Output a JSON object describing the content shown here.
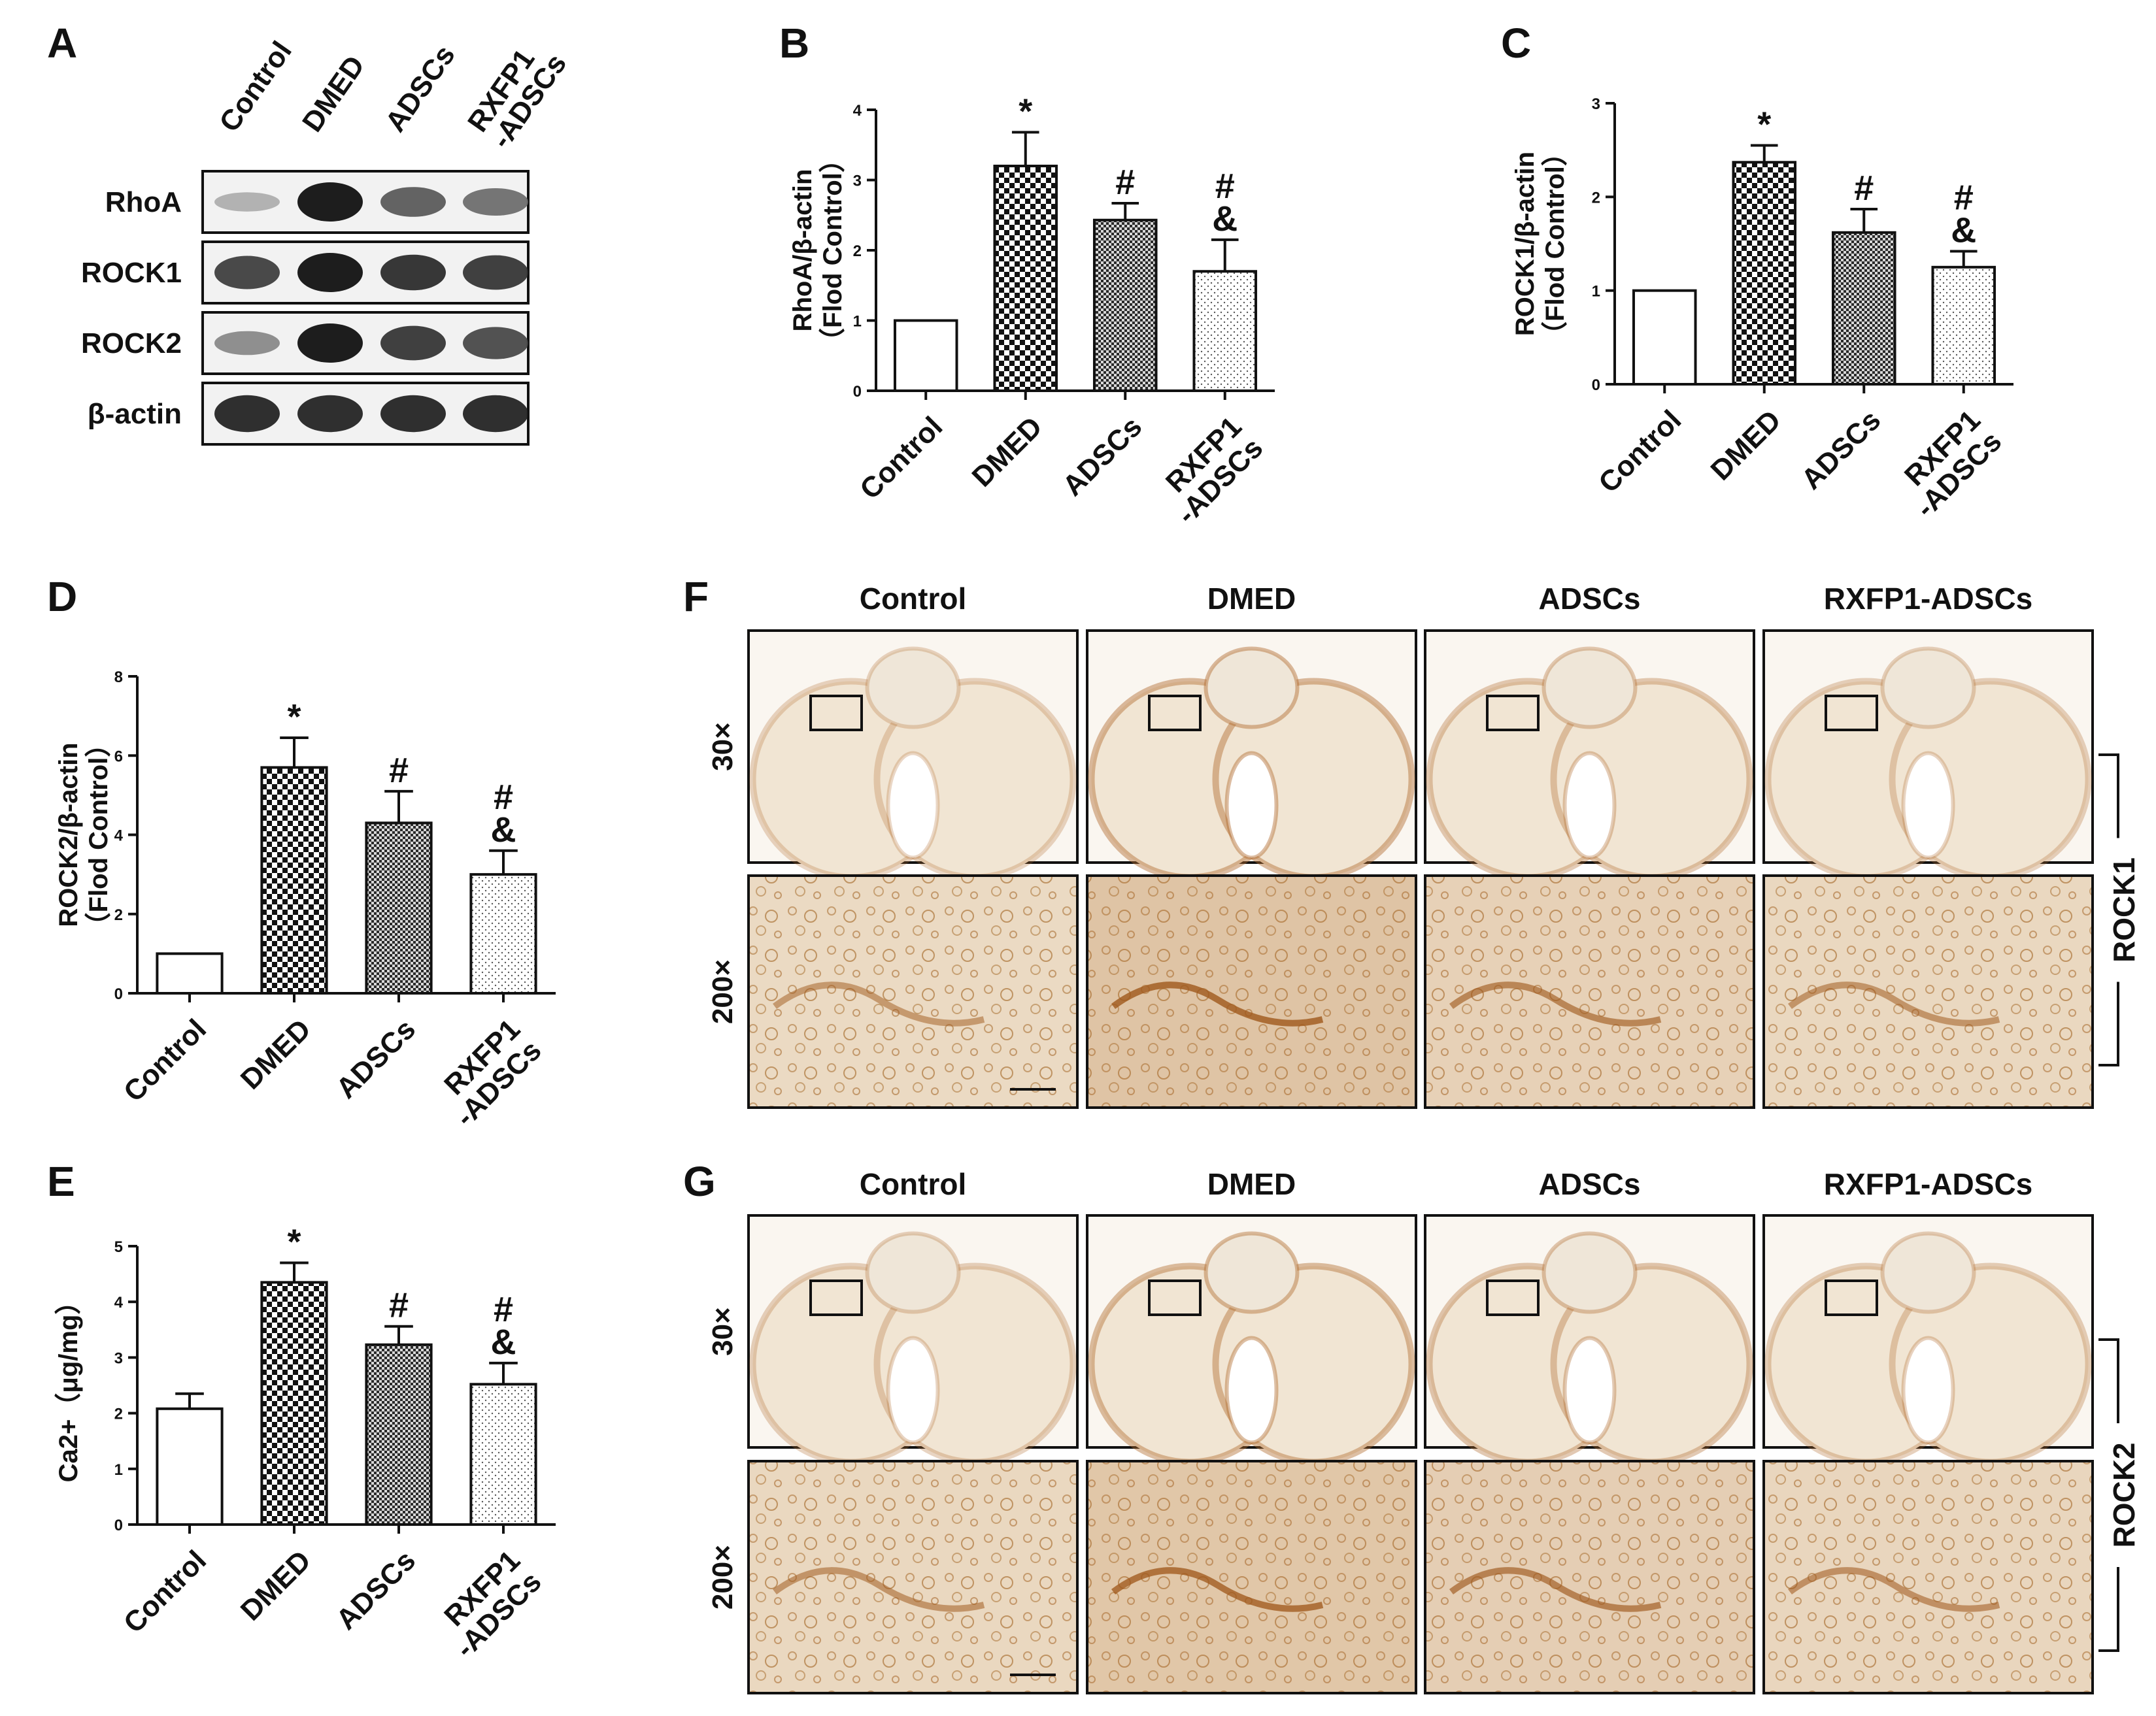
{
  "blot": {
    "panel_label": "A",
    "lanes": [
      "Control",
      "DMED",
      "ADSCs",
      "RXFP1\n-ADSCs"
    ],
    "proteins": [
      "RhoA",
      "ROCK1",
      "ROCK2",
      "β-actin"
    ],
    "band_intensity": [
      [
        0.15,
        1.0,
        0.6,
        0.5
      ],
      [
        0.75,
        1.0,
        0.85,
        0.8
      ],
      [
        0.35,
        1.0,
        0.8,
        0.7
      ],
      [
        0.9,
        0.9,
        0.9,
        0.9
      ]
    ]
  },
  "chart_data": [
    {
      "panel": "B",
      "type": "bar",
      "categories": [
        "Control",
        "DMED",
        "ADSCs",
        "RXFP1\n-ADSCs"
      ],
      "values": [
        1.0,
        3.2,
        2.43,
        1.7
      ],
      "errors": [
        0,
        0.48,
        0.24,
        0.45
      ],
      "significance": [
        "",
        "*",
        "#",
        "#\n&"
      ],
      "ylabel": "RhoA/β-actin\n（Flod Control）",
      "ylim": [
        0,
        4
      ],
      "yticks": [
        0,
        1,
        2,
        3,
        4
      ]
    },
    {
      "panel": "C",
      "type": "bar",
      "categories": [
        "Control",
        "DMED",
        "ADSCs",
        "RXFP1\n-ADSCs"
      ],
      "values": [
        1.0,
        2.37,
        1.62,
        1.25
      ],
      "errors": [
        0,
        0.18,
        0.25,
        0.17
      ],
      "significance": [
        "",
        "*",
        "#",
        "#\n&"
      ],
      "ylabel": "ROCK1/β-actin\n（Flod Control）",
      "ylim": [
        0,
        3
      ],
      "yticks": [
        0,
        1,
        2,
        3
      ]
    },
    {
      "panel": "D",
      "type": "bar",
      "categories": [
        "Control",
        "DMED",
        "ADSCs",
        "RXFP1\n-ADSCs"
      ],
      "values": [
        1.0,
        5.7,
        4.3,
        3.0
      ],
      "errors": [
        0,
        0.75,
        0.8,
        0.6
      ],
      "significance": [
        "",
        "*",
        "#",
        "#\n&"
      ],
      "ylabel": "ROCK2/β-actin\n（Flod Control）",
      "ylim": [
        0,
        8
      ],
      "yticks": [
        0,
        2,
        4,
        6,
        8
      ]
    },
    {
      "panel": "E",
      "type": "bar",
      "categories": [
        "Control",
        "DMED",
        "ADSCs",
        "RXFP1\n-ADSCs"
      ],
      "values": [
        2.08,
        4.35,
        3.23,
        2.52
      ],
      "errors": [
        0.27,
        0.35,
        0.33,
        0.38
      ],
      "significance": [
        "",
        "*",
        "#",
        "#\n&"
      ],
      "ylabel": "Ca2+（μg/mg）",
      "ylim": [
        0,
        5
      ],
      "yticks": [
        0,
        1,
        2,
        3,
        4,
        5
      ]
    }
  ],
  "histology": [
    {
      "panel": "F",
      "columns": [
        "Control",
        "DMED",
        "ADSCs",
        "RXFP1-ADSCs"
      ],
      "rows": [
        "30×",
        "200×"
      ],
      "side_label": "ROCK1",
      "stain_intensity": [
        0.35,
        0.85,
        0.55,
        0.4
      ]
    },
    {
      "panel": "G",
      "columns": [
        "Control",
        "DMED",
        "ADSCs",
        "RXFP1-ADSCs"
      ],
      "rows": [
        "30×",
        "200×"
      ],
      "side_label": "ROCK2",
      "stain_intensity": [
        0.4,
        0.8,
        0.6,
        0.45
      ]
    }
  ],
  "colors": {
    "axis": "#111111",
    "bar_edge": "#111111",
    "tissue_base": "#efe3d2",
    "stain": "#b06a2c",
    "background": "#f9f3ea"
  }
}
